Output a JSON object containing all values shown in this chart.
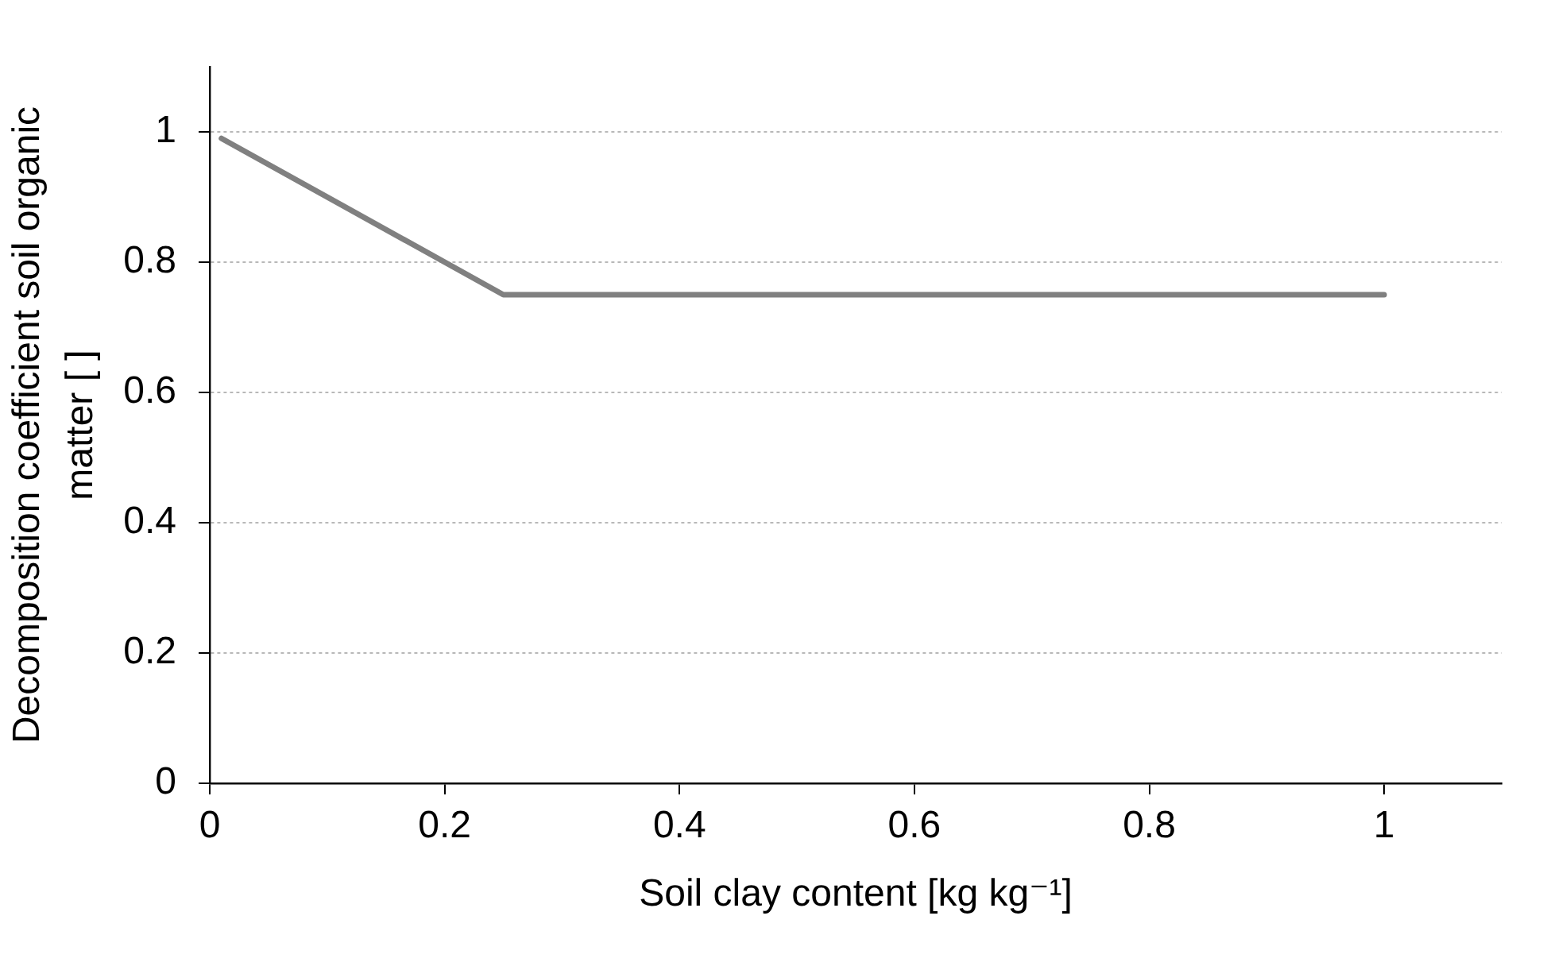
{
  "chart_data": {
    "type": "line",
    "xlabel": "Soil clay content [kg kg⁻¹]",
    "ylabel": "Decomposition coefficient soil organic matter [ ]",
    "x": [
      0.01,
      0.25,
      1
    ],
    "series": [
      {
        "color": "#808080",
        "values": [
          0.99,
          0.75,
          0.75
        ]
      }
    ],
    "xlim": [
      0,
      1.1
    ],
    "ylim": [
      0,
      1.1
    ],
    "xticks": [
      0,
      0.2,
      0.4,
      0.6,
      0.8,
      1
    ],
    "yticks": [
      0,
      0.2,
      0.4,
      0.6,
      0.8,
      1
    ],
    "grid": "y"
  }
}
